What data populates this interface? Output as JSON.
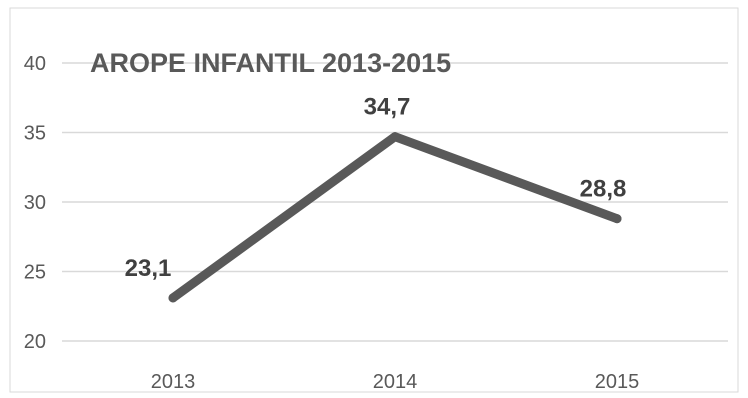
{
  "chart_data": {
    "type": "line",
    "title": "AROPE INFANTIL 2013-2015",
    "categories": [
      "2013",
      "2014",
      "2015"
    ],
    "series": [
      {
        "values": [
          23.1,
          34.7,
          28.8
        ],
        "color": "#595959"
      }
    ],
    "data_labels": [
      "23,1",
      "34,7",
      "28,8"
    ],
    "y_ticks": [
      "20",
      "25",
      "30",
      "35",
      "40"
    ],
    "ylim": [
      20,
      40
    ],
    "grid": true,
    "legend": false
  }
}
